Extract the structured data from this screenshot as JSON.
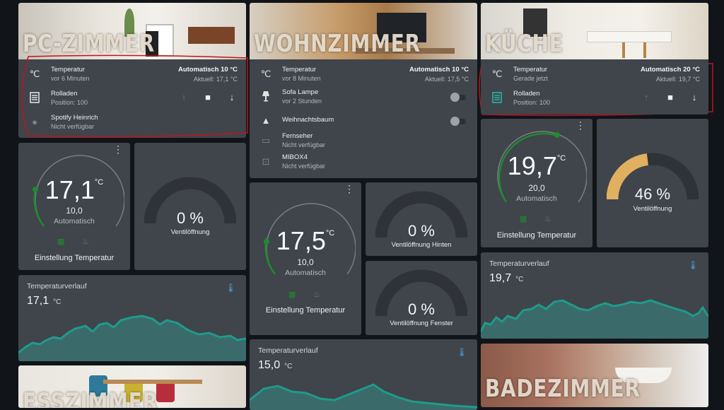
{
  "rooms": {
    "pc": {
      "title": "PC-ZIMMER"
    },
    "wohn": {
      "title": "WOHNZIMMER"
    },
    "kueche": {
      "title": "KÜCHE"
    },
    "bad": {
      "title": "BADEZIMMER"
    },
    "ess": {
      "title": "ESSZIMMER"
    }
  },
  "pc_entities": {
    "temp": {
      "name": "Temperatur",
      "sub": "vor 6 Minuten",
      "mode": "Automatisch 10 °C",
      "current": "Aktuell: 17,1 °C"
    },
    "rolladen": {
      "name": "Rolladen",
      "sub": "Position: 100"
    },
    "spotify": {
      "name": "Spotify Heinrich",
      "sub": "Nicht verfügbar"
    }
  },
  "wohn_entities": {
    "temp": {
      "name": "Temperatur",
      "sub": "vor 8 Minuten",
      "mode": "Automatisch 10 °C",
      "current": "Aktuell: 17,5 °C"
    },
    "lampe": {
      "name": "Sofa Lampe",
      "sub": "vor 2 Stunden"
    },
    "baum": {
      "name": "Weihnachtsbaum"
    },
    "tv": {
      "name": "Fernseher",
      "sub": "Nicht verfügbar"
    },
    "mibox": {
      "name": "MIBOX4",
      "sub": "Nicht verfügbar"
    }
  },
  "kueche_entities": {
    "temp": {
      "name": "Temperatur",
      "sub": "Gerade jetzt",
      "mode": "Automatisch 20 °C",
      "current": "Aktuell: 19,7 °C"
    },
    "rolladen": {
      "name": "Rolladen",
      "sub": "Position: 100"
    }
  },
  "thermostats": {
    "pc": {
      "value": "17,1",
      "unit": "°C",
      "target": "10,0",
      "mode": "Automatisch",
      "title": "Einstellung Temperatur"
    },
    "wohn": {
      "value": "17,5",
      "unit": "°C",
      "target": "10,0",
      "mode": "Automatisch",
      "title": "Einstellung Temperatur"
    },
    "kueche": {
      "value": "19,7",
      "unit": "°C",
      "target": "20,0",
      "mode": "Automatisch",
      "title": "Einstellung Temperatur"
    }
  },
  "gauges": {
    "pc": {
      "value": "0 %",
      "label": "Ventilöffnung",
      "fraction": 0
    },
    "wohn_hinten": {
      "value": "0 %",
      "label": "Ventilöffnung Hinten",
      "fraction": 0
    },
    "wohn_fenster": {
      "value": "0 %",
      "label": "Ventilöffnung Fenster",
      "fraction": 0
    },
    "kueche": {
      "value": "46 %",
      "label": "Ventilöffnung",
      "fraction": 0.46
    }
  },
  "history": {
    "pc": {
      "title": "Temperaturverlauf",
      "value": "17,1",
      "unit": "°C"
    },
    "wohn": {
      "title": "Temperaturverlauf",
      "value": "15,0",
      "unit": "°C"
    },
    "kueche": {
      "title": "Temperaturverlauf",
      "value": "19,7",
      "unit": "°C"
    }
  },
  "colors": {
    "card": "#40444b",
    "accent_green": "#1f8a2e",
    "gauge_fill": "#e0b060",
    "chart_line": "#1f9b8a",
    "annotation_red": "#c0141c",
    "annotation_blue": "#1414c8"
  },
  "icons": {
    "temperature": "thermometer-celsius-icon",
    "shutter": "window-shutter-icon",
    "music": "spotify-icon",
    "lamp": "lamp-icon",
    "tree": "pine-tree-icon",
    "tv": "television-icon",
    "cast": "cast-icon",
    "calendar": "calendar-icon",
    "flame": "fire-icon"
  }
}
